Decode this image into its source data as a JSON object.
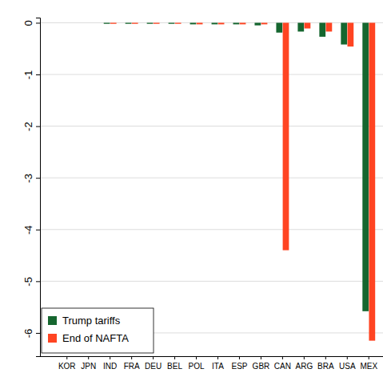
{
  "chart_data": {
    "type": "bar",
    "categories": [
      "KOR",
      "JPN",
      "IND",
      "FRA",
      "DEU",
      "BEL",
      "POL",
      "ITA",
      "ESP",
      "GBR",
      "CAN",
      "ARG",
      "BRA",
      "USA",
      "MEX"
    ],
    "series": [
      {
        "name": "Trump tariffs",
        "color": "#15662f",
        "values": [
          0,
          0,
          -0.02,
          -0.02,
          -0.02,
          -0.02,
          -0.03,
          -0.03,
          -0.03,
          -0.05,
          -0.19,
          -0.17,
          -0.27,
          -0.42,
          -5.58
        ]
      },
      {
        "name": "End of NAFTA",
        "color": "#ff4422",
        "values": [
          0,
          0,
          -0.02,
          -0.02,
          -0.02,
          -0.02,
          -0.03,
          -0.03,
          -0.03,
          -0.03,
          -4.4,
          -0.11,
          -0.17,
          -0.46,
          -6.15
        ]
      }
    ],
    "ylim": [
      -6.45,
      0.1
    ],
    "yticks": [
      0,
      -1,
      -2,
      -3,
      -4,
      -5,
      -6
    ],
    "grid": true,
    "legend": "bottom-left"
  }
}
